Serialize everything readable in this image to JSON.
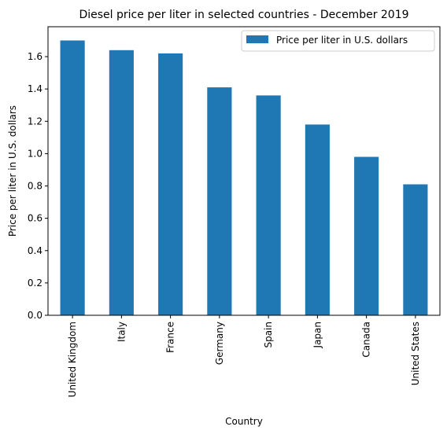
{
  "chart_data": {
    "type": "bar",
    "title": "Diesel price per liter in selected countries - December 2019",
    "xlabel": "Country",
    "ylabel": "Price per liter in U.S. dollars",
    "categories": [
      "United Kingdom",
      "Italy",
      "France",
      "Germany",
      "Spain",
      "Japan",
      "Canada",
      "United States"
    ],
    "series": [
      {
        "name": "Price per liter in U.S. dollars",
        "values": [
          1.7,
          1.64,
          1.62,
          1.41,
          1.36,
          1.18,
          0.98,
          0.81
        ],
        "color": "#1f77b4"
      }
    ],
    "ylim": [
      0,
      1.785
    ],
    "yticks": [
      "0.0",
      "0.2",
      "0.4",
      "0.6",
      "0.8",
      "1.0",
      "1.2",
      "1.4",
      "1.6"
    ],
    "grid": false,
    "legend_position": "top-right"
  }
}
